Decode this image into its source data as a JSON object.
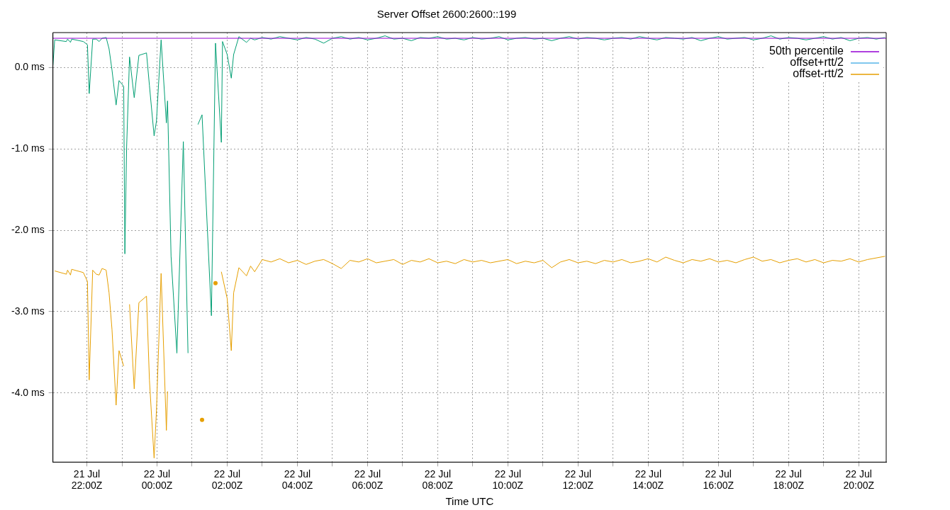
{
  "chart_data": {
    "type": "line",
    "title": "Server Offset 2600:2600::199",
    "xlabel": "Time UTC",
    "xlim": [
      "--07-21T21:02",
      "--07-22T20:47"
    ],
    "xticks": [
      {
        "value": "--07-21T22:00",
        "label": "21 Jul\n22:00Z"
      },
      {
        "value": "--07-21T23:00",
        "label": null
      },
      {
        "value": "--07-22T00:00",
        "label": "22 Jul\n00:00Z"
      },
      {
        "value": "--07-22T01:00",
        "label": null
      },
      {
        "value": "--07-22T02:00",
        "label": "22 Jul\n02:00Z"
      },
      {
        "value": "--07-22T03:00",
        "label": null
      },
      {
        "value": "--07-22T04:00",
        "label": "22 Jul\n04:00Z"
      },
      {
        "value": "--07-22T05:00",
        "label": null
      },
      {
        "value": "--07-22T06:00",
        "label": "22 Jul\n06:00Z"
      },
      {
        "value": "--07-22T07:00",
        "label": null
      },
      {
        "value": "--07-22T08:00",
        "label": "22 Jul\n08:00Z"
      },
      {
        "value": "--07-22T09:00",
        "label": null
      },
      {
        "value": "--07-22T10:00",
        "label": "22 Jul\n10:00Z"
      },
      {
        "value": "--07-22T11:00",
        "label": null
      },
      {
        "value": "--07-22T12:00",
        "label": "22 Jul\n12:00Z"
      },
      {
        "value": "--07-22T13:00",
        "label": null
      },
      {
        "value": "--07-22T14:00",
        "label": "22 Jul\n14:00Z"
      },
      {
        "value": "--07-22T15:00",
        "label": null
      },
      {
        "value": "--07-22T16:00",
        "label": "22 Jul\n16:00Z"
      },
      {
        "value": "--07-22T17:00",
        "label": null
      },
      {
        "value": "--07-22T18:00",
        "label": "22 Jul\n18:00Z"
      },
      {
        "value": "--07-22T19:00",
        "label": null
      },
      {
        "value": "--07-22T20:00",
        "label": "22 Jul\n20:00Z"
      }
    ],
    "ylim": [
      -4.85,
      0.43
    ],
    "yticks": [
      {
        "value": 0,
        "label": "0.0 ms"
      },
      {
        "value": -1,
        "label": "-1.0 ms"
      },
      {
        "value": -2,
        "label": "-2.0 ms"
      },
      {
        "value": -3,
        "label": "-3.0 ms"
      },
      {
        "value": -4,
        "label": "-4.0 ms"
      }
    ],
    "grid": true,
    "legend": "top right",
    "marker": "none",
    "line_style": "solid",
    "series": [
      {
        "name": "50th percentile",
        "color": "#9400d3",
        "x": [
          "--07-21T21:02",
          "--07-22T20:47"
        ],
        "values": [
          0.36,
          0.36
        ]
      },
      {
        "color": "#009e73",
        "x": [
          "--07-21T21:02",
          "--07-21T21:05",
          "--07-21T21:25",
          "--07-21T21:27",
          "--07-21T21:32",
          "--07-21T21:34",
          "--07-21T21:54",
          "--07-21T22:01",
          "--07-21T22:04",
          "--07-21T22:10",
          "--07-21T22:16",
          "--07-21T22:21",
          "--07-21T22:26",
          "--07-21T22:33",
          "--07-21T22:38",
          "--07-21T22:43",
          "--07-21T22:50",
          "--07-21T22:55",
          "--07-21T23:03",
          "--07-21T23:05",
          "--07-21T23:08",
          "--07-21T23:13",
          "--07-21T23:21",
          "--07-21T23:29",
          "--07-21T23:42",
          "--07-21T23:47",
          "--07-21T23:55",
          "--07-21T23:59",
          "--07-22T00:07",
          "--07-22T00:16",
          "--07-22T00:18",
          "--07-22T00:24",
          "--07-22T00:34",
          "--07-22T00:45",
          "--07-22T00:53",
          "--07-22T00:59",
          "--07-22T01:10",
          "--07-22T01:17",
          "--07-22T01:33",
          "--07-22T01:40",
          "--07-22T01:50",
          "--07-22T01:52",
          "--07-22T02:00",
          "--07-22T02:07",
          "--07-22T02:11",
          "--07-22T02:20",
          "--07-22T02:33",
          "--07-22T02:40",
          "--07-22T02:47",
          "--07-22T03:00",
          "--07-22T03:15",
          "--07-22T03:30",
          "--07-22T03:45",
          "--07-22T04:00",
          "--07-22T04:15",
          "--07-22T04:30",
          "--07-22T04:45",
          "--07-22T05:00",
          "--07-22T05:15",
          "--07-22T05:30",
          "--07-22T05:45",
          "--07-22T06:00",
          "--07-22T06:15",
          "--07-22T06:30",
          "--07-22T06:45",
          "--07-22T07:00",
          "--07-22T07:15",
          "--07-22T07:30",
          "--07-22T07:45",
          "--07-22T08:00",
          "--07-22T08:15",
          "--07-22T08:30",
          "--07-22T08:45",
          "--07-22T09:00",
          "--07-22T09:15",
          "--07-22T09:30",
          "--07-22T09:45",
          "--07-22T10:00",
          "--07-22T10:15",
          "--07-22T10:30",
          "--07-22T10:45",
          "--07-22T11:00",
          "--07-22T11:15",
          "--07-22T11:30",
          "--07-22T11:45",
          "--07-22T12:00",
          "--07-22T12:15",
          "--07-22T12:30",
          "--07-22T12:45",
          "--07-22T13:00",
          "--07-22T13:15",
          "--07-22T13:30",
          "--07-22T13:45",
          "--07-22T14:00",
          "--07-22T14:15",
          "--07-22T14:30",
          "--07-22T14:45",
          "--07-22T15:00",
          "--07-22T15:15",
          "--07-22T15:30",
          "--07-22T15:45",
          "--07-22T16:00",
          "--07-22T16:15",
          "--07-22T16:30",
          "--07-22T16:45",
          "--07-22T17:00",
          "--07-22T17:15",
          "--07-22T17:30",
          "--07-22T17:45",
          "--07-22T18:00",
          "--07-22T18:15",
          "--07-22T18:30",
          "--07-22T18:45",
          "--07-22T19:00",
          "--07-22T19:15",
          "--07-22T19:30",
          "--07-22T19:45",
          "--07-22T20:00",
          "--07-22T20:15",
          "--07-22T20:30",
          "--07-22T20:45"
        ],
        "values": [
          0.03,
          0.34,
          0.32,
          0.35,
          0.31,
          0.35,
          0.32,
          0.28,
          -0.32,
          0.35,
          0.35,
          0.32,
          0.36,
          0.37,
          0.23,
          -0.03,
          -0.46,
          -0.16,
          -0.23,
          -2.29,
          -0.98,
          0.13,
          -0.37,
          0.15,
          0.18,
          -0.22,
          -0.84,
          -0.66,
          0.34,
          -0.68,
          -0.41,
          -2.32,
          -3.51,
          -0.91,
          -3.51,
          null,
          -0.7,
          -0.58,
          -3.05,
          0.3,
          -0.92,
          0.32,
          0.16,
          -0.13,
          0.16,
          0.38,
          0.31,
          0.36,
          0.34,
          0.37,
          0.35,
          0.38,
          0.36,
          0.34,
          0.37,
          0.35,
          0.3,
          0.36,
          0.38,
          0.35,
          0.37,
          0.34,
          0.36,
          0.39,
          0.35,
          0.36,
          0.33,
          0.37,
          0.36,
          0.38,
          0.35,
          0.36,
          0.34,
          0.37,
          0.35,
          0.36,
          0.38,
          0.34,
          0.36,
          0.37,
          0.35,
          0.36,
          0.33,
          0.36,
          0.38,
          0.35,
          0.37,
          0.36,
          0.34,
          0.36,
          0.37,
          0.35,
          0.38,
          0.36,
          0.34,
          0.37,
          0.36,
          0.35,
          0.37,
          0.33,
          0.36,
          0.38,
          0.35,
          0.36,
          0.37,
          0.34,
          0.36,
          0.39,
          0.35,
          0.37,
          0.36,
          0.34,
          0.36,
          0.38,
          0.35,
          0.37,
          0.33,
          0.36,
          0.37,
          0.35,
          0.37
        ]
      },
      {
        "name": "offset+rtt/2",
        "color": "#56b4e9"
      },
      {
        "name": "offset-rtt/2",
        "color": "#e69f00",
        "x": [
          "--07-21T21:05",
          "--07-21T21:25",
          "--07-21T21:27",
          "--07-21T21:32",
          "--07-21T21:34",
          "--07-21T21:54",
          "--07-21T22:01",
          "--07-21T22:04",
          "--07-21T22:10",
          "--07-21T22:16",
          "--07-21T22:21",
          "--07-21T22:26",
          "--07-21T22:33",
          "--07-21T22:38",
          "--07-21T22:43",
          "--07-21T22:50",
          "--07-21T22:55",
          "--07-21T23:03",
          "--07-21T23:05",
          "--07-21T23:08",
          "--07-21T23:13",
          "--07-21T23:21",
          "--07-21T23:29",
          "--07-21T23:42",
          "--07-21T23:47",
          "--07-21T23:55",
          "--07-21T23:59",
          "--07-22T00:07",
          "--07-22T00:16",
          "--07-22T00:18",
          "--07-22T00:19",
          "--07-22T00:42",
          "--07-22T01:08",
          "--07-22T01:17",
          "--07-22T01:18",
          "--07-22T01:27",
          "--07-22T01:35",
          "--07-22T01:40",
          "--07-22T01:49",
          "--07-22T01:50",
          "--07-22T02:00",
          "--07-22T02:07",
          "--07-22T02:11",
          "--07-22T02:20",
          "--07-22T02:33",
          "--07-22T02:40",
          "--07-22T02:47",
          "--07-22T03:00",
          "--07-22T03:15",
          "--07-22T03:30",
          "--07-22T03:45",
          "--07-22T04:00",
          "--07-22T04:15",
          "--07-22T04:30",
          "--07-22T04:45",
          "--07-22T05:00",
          "--07-22T05:15",
          "--07-22T05:30",
          "--07-22T05:45",
          "--07-22T06:00",
          "--07-22T06:15",
          "--07-22T06:30",
          "--07-22T06:45",
          "--07-22T07:00",
          "--07-22T07:15",
          "--07-22T07:30",
          "--07-22T07:45",
          "--07-22T08:00",
          "--07-22T08:15",
          "--07-22T08:30",
          "--07-22T08:45",
          "--07-22T09:00",
          "--07-22T09:15",
          "--07-22T09:30",
          "--07-22T09:45",
          "--07-22T10:00",
          "--07-22T10:15",
          "--07-22T10:30",
          "--07-22T10:45",
          "--07-22T11:00",
          "--07-22T11:15",
          "--07-22T11:30",
          "--07-22T11:45",
          "--07-22T12:00",
          "--07-22T12:15",
          "--07-22T12:30",
          "--07-22T12:45",
          "--07-22T13:00",
          "--07-22T13:15",
          "--07-22T13:30",
          "--07-22T13:45",
          "--07-22T14:00",
          "--07-22T14:15",
          "--07-22T14:30",
          "--07-22T14:45",
          "--07-22T15:00",
          "--07-22T15:15",
          "--07-22T15:30",
          "--07-22T15:45",
          "--07-22T16:00",
          "--07-22T16:15",
          "--07-22T16:30",
          "--07-22T16:45",
          "--07-22T17:00",
          "--07-22T17:15",
          "--07-22T17:30",
          "--07-22T17:45",
          "--07-22T18:00",
          "--07-22T18:15",
          "--07-22T18:30",
          "--07-22T18:45",
          "--07-22T19:00",
          "--07-22T19:15",
          "--07-22T19:30",
          "--07-22T19:45",
          "--07-22T20:00",
          "--07-22T20:15",
          "--07-22T20:30",
          "--07-22T20:45"
        ],
        "values": [
          -2.5,
          -2.54,
          -2.49,
          -2.55,
          -2.48,
          -2.52,
          -2.63,
          -3.84,
          -2.49,
          -2.54,
          -2.55,
          -2.47,
          -2.49,
          -2.77,
          -3.22,
          -4.15,
          -3.48,
          -3.67,
          null,
          null,
          -2.91,
          -3.95,
          -2.89,
          -2.81,
          -3.84,
          -4.8,
          -4.22,
          -2.53,
          -4.46,
          -3.98,
          null,
          null,
          null,
          -4.33,
          null,
          null,
          null,
          -2.65,
          null,
          -2.51,
          -2.84,
          -3.48,
          -2.77,
          -2.46,
          -2.56,
          -2.44,
          -2.51,
          -2.36,
          -2.39,
          -2.35,
          -2.4,
          -2.37,
          -2.42,
          -2.38,
          -2.36,
          -2.41,
          -2.47,
          -2.37,
          -2.39,
          -2.35,
          -2.4,
          -2.38,
          -2.36,
          -2.42,
          -2.37,
          -2.39,
          -2.35,
          -2.4,
          -2.38,
          -2.41,
          -2.36,
          -2.39,
          -2.37,
          -2.4,
          -2.38,
          -2.36,
          -2.41,
          -2.38,
          -2.4,
          -2.37,
          -2.46,
          -2.39,
          -2.36,
          -2.4,
          -2.38,
          -2.41,
          -2.37,
          -2.39,
          -2.36,
          -2.4,
          -2.38,
          -2.35,
          -2.39,
          -2.33,
          -2.37,
          -2.4,
          -2.36,
          -2.38,
          -2.35,
          -2.39,
          -2.37,
          -2.4,
          -2.36,
          -2.33,
          -2.38,
          -2.36,
          -2.4,
          -2.37,
          -2.35,
          -2.39,
          -2.36,
          -2.4,
          -2.37,
          -2.38,
          -2.35,
          -2.39,
          -2.36,
          -2.34,
          -2.32
        ]
      }
    ]
  }
}
